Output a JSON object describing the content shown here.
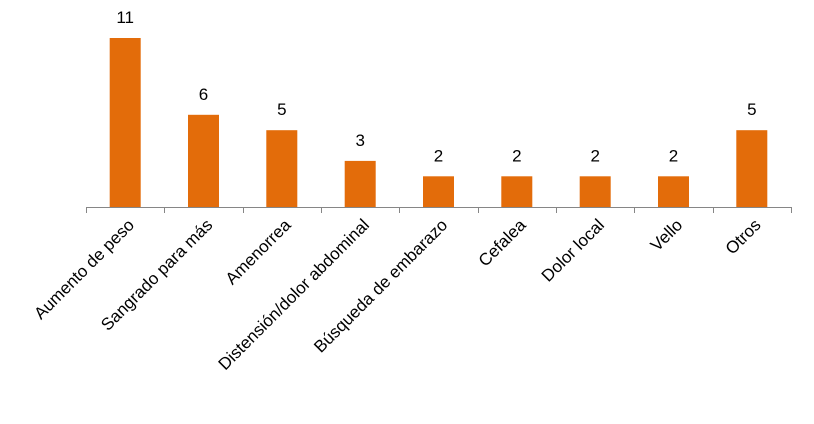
{
  "chart_data": {
    "type": "bar",
    "title": "",
    "xlabel": "",
    "ylabel": "",
    "categories": [
      "Aumento de peso",
      "Sangrado para más",
      "Amenorrea",
      "Distensión/dolor abdominal",
      "Búsqueda de embarazo",
      "Cefalea",
      "Dolor local",
      "Vello",
      "Otros"
    ],
    "values": [
      11,
      6,
      5,
      3,
      2,
      2,
      2,
      2,
      5
    ],
    "ylim": [
      0,
      11
    ],
    "grid": false,
    "legend": "none",
    "data_labels": true,
    "bar_color": "#E36C0A",
    "axis_color": "#868686",
    "text_color": "#000000"
  }
}
